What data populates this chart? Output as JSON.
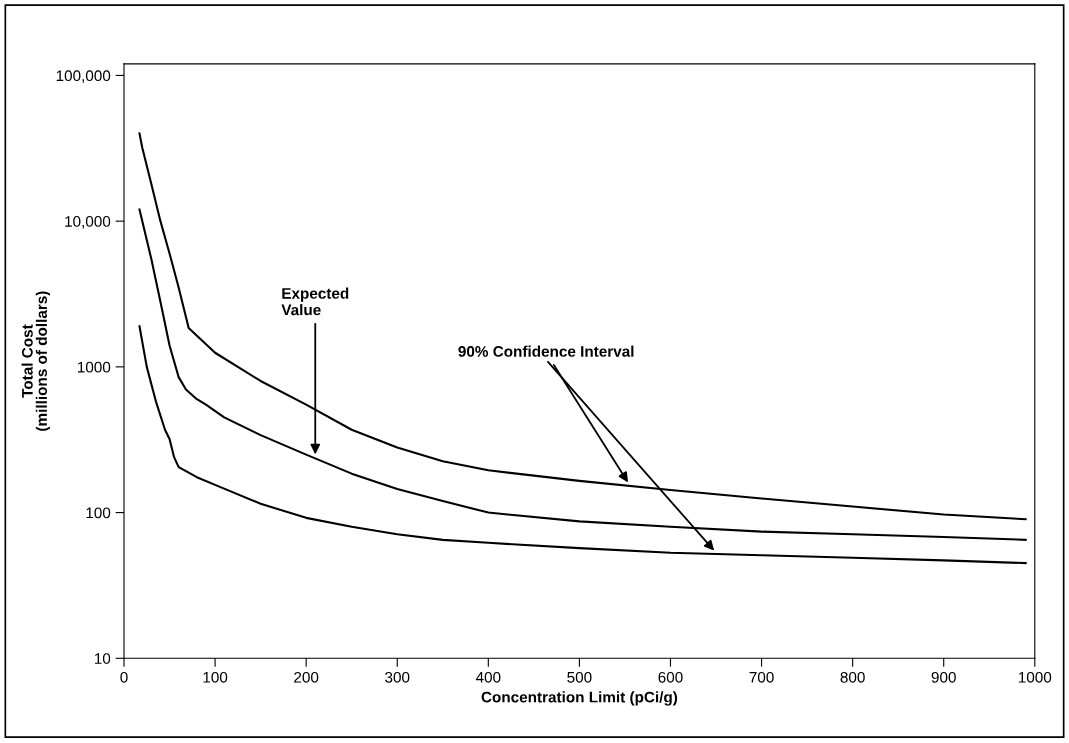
{
  "chart_data": {
    "type": "line",
    "xlabel": "Concentration Limit (pCi/g)",
    "ylabel": "Total Cost\n(millions of dollars)",
    "log": "y",
    "grid": false,
    "marker": "none",
    "line_style": "solid",
    "xlim": [
      0,
      1000
    ],
    "xticks": [
      0,
      100,
      200,
      300,
      400,
      500,
      600,
      700,
      800,
      900,
      1000
    ],
    "ylim": [
      10,
      120000
    ],
    "yticks": [
      10,
      100,
      1000,
      {
        "value": 10000,
        "label": "10,000"
      },
      {
        "value": 100000,
        "label": "100,000"
      }
    ],
    "series": [
      {
        "color": "#000000",
        "x": [
          17,
          20,
          30,
          40,
          50,
          60,
          71,
          100,
          150,
          200,
          250,
          300,
          350,
          400,
          500,
          600,
          700,
          800,
          900,
          990
        ],
        "values": [
          40000,
          32000,
          18000,
          10000,
          6000,
          3500,
          1850,
          1250,
          800,
          550,
          370,
          280,
          225,
          195,
          165,
          143,
          125,
          110,
          97,
          90
        ]
      },
      {
        "color": "#000000",
        "x": [
          17,
          30,
          40,
          50,
          60,
          68,
          80,
          90,
          110,
          150,
          200,
          250,
          300,
          350,
          400,
          500,
          600,
          700,
          800,
          900,
          990
        ],
        "values": [
          12000,
          5500,
          2800,
          1400,
          850,
          700,
          600,
          550,
          450,
          340,
          250,
          185,
          145,
          120,
          100,
          87,
          80,
          74,
          71,
          68,
          65
        ]
      },
      {
        "color": "#000000",
        "x": [
          17,
          25,
          35,
          45,
          50,
          55,
          60,
          80,
          100,
          150,
          200,
          250,
          300,
          350,
          400,
          500,
          600,
          700,
          800,
          900,
          990
        ],
        "values": [
          1900,
          1000,
          580,
          370,
          320,
          240,
          205,
          175,
          155,
          115,
          92,
          80,
          71,
          65,
          62,
          57,
          53,
          51,
          49,
          47,
          45
        ]
      }
    ],
    "annotations": [
      {
        "text": "Expected\nValue",
        "x": 210,
        "y": 240
      },
      {
        "text": "90% Confidence Interval",
        "x": 555,
        "y": 155
      }
    ]
  }
}
